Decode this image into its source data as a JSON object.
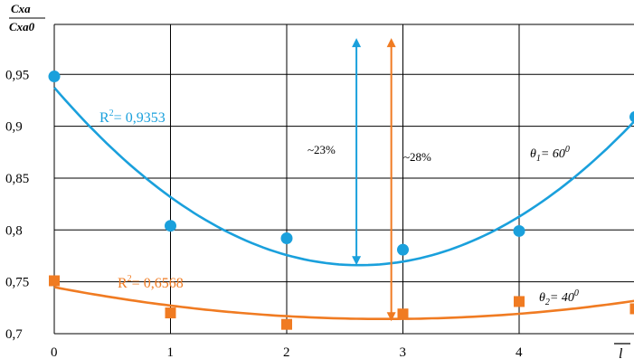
{
  "chart_data": {
    "type": "scatter",
    "y_axis_label_numerator": "Cxa",
    "y_axis_label_denominator": "Cxa0",
    "x_axis_label": "l",
    "x_ticks": [
      "0",
      "1",
      "2",
      "3",
      "4"
    ],
    "y_ticks": [
      "0,95",
      "0,9",
      "0,85",
      "0,8",
      "0,75",
      "0,7"
    ],
    "xlim": [
      0,
      5
    ],
    "ylim": [
      0.7,
      0.99
    ],
    "grid": true,
    "series": [
      {
        "name": "θ1 = 60°",
        "color": "#1aa0dc",
        "marker": "circle",
        "x": [
          0,
          1,
          2,
          3,
          4,
          5
        ],
        "y": [
          0.948,
          0.804,
          0.792,
          0.781,
          0.799,
          0.909
        ],
        "trend": "poly2",
        "r2_label": "R² = 0,9353"
      },
      {
        "name": "θ2 = 40°",
        "color": "#f07b22",
        "marker": "square",
        "x": [
          0,
          1,
          2,
          3,
          4,
          5
        ],
        "y": [
          0.751,
          0.72,
          0.709,
          0.719,
          0.731,
          0.724
        ],
        "trend": "poly2",
        "r2_label": "R² = 0,6568"
      }
    ],
    "annotations": [
      {
        "text": "~23%",
        "color": "#1aa0dc",
        "x": 2.6,
        "y_from": 0.766,
        "y_to": 0.985
      },
      {
        "text": "~28%",
        "color": "#f07b22",
        "x": 2.9,
        "y_from": 0.712,
        "y_to": 0.985
      }
    ],
    "theta1": {
      "symbol": "θ",
      "sub": "1",
      "value": "= 60",
      "sup": "0"
    },
    "theta2": {
      "symbol": "θ",
      "sub": "2",
      "value": "= 40",
      "sup": "0"
    },
    "r2_blue": {
      "prefix": "R",
      "sup": "2",
      "value": "= 0,9353"
    },
    "r2_orange": {
      "prefix": "R",
      "sup": "2",
      "value": "= 0,6568"
    }
  }
}
